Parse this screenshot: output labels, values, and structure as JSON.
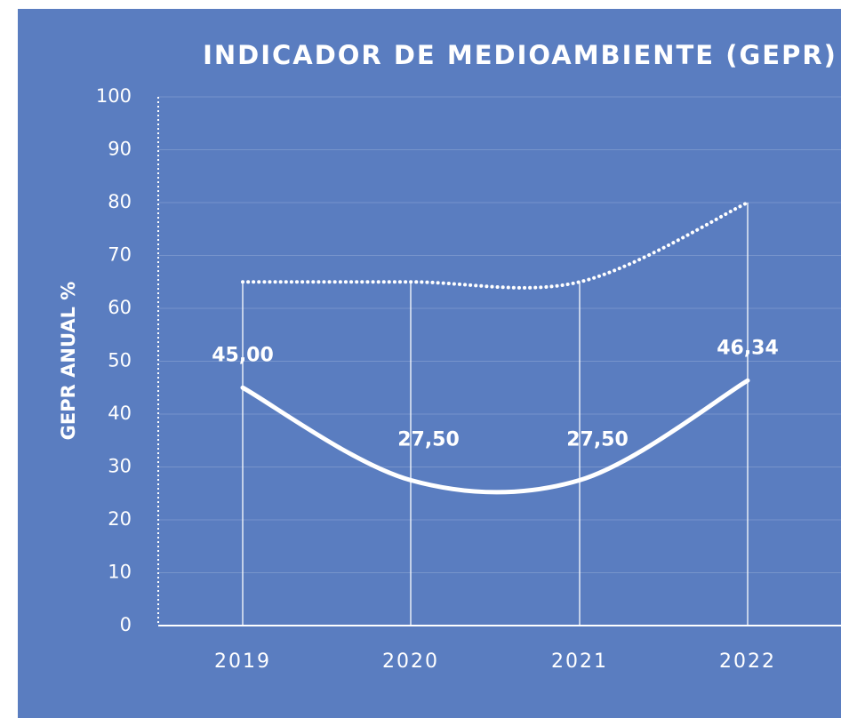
{
  "chart_data": {
    "type": "line",
    "title": "INDICADOR DE MEDIOAMBIENTE (GEPR)",
    "y_label": "GEPR ANUAL %",
    "categories": [
      "2019",
      "2020",
      "2021",
      "2022"
    ],
    "series": [
      {
        "color": "#ffffff",
        "values": [
          45,
          27.5,
          27.5,
          46.34
        ],
        "value_labels": [
          "45,00",
          "27,50",
          "27,50",
          "46,34"
        ],
        "style": "solid"
      },
      {
        "color": "#ffffff",
        "values": [
          65,
          65,
          65,
          80
        ],
        "style": "dotted"
      }
    ],
    "ylim": [
      0,
      100
    ],
    "yticks": [
      0,
      10,
      20,
      30,
      40,
      50,
      60,
      70,
      80,
      90,
      100
    ],
    "grid": true,
    "smooth": true
  }
}
